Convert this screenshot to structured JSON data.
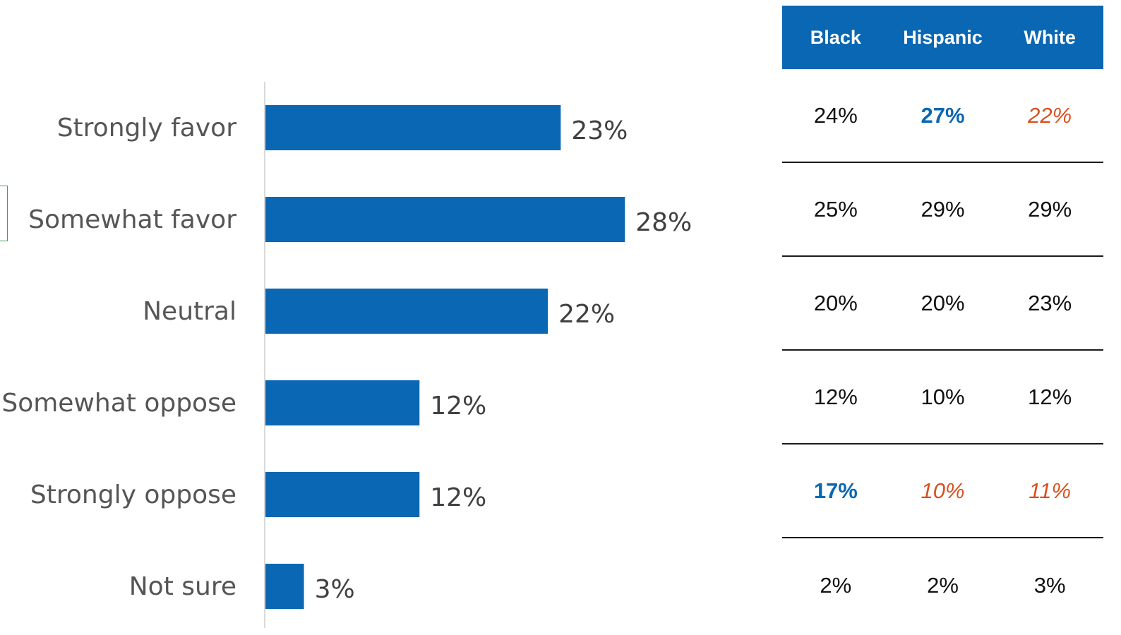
{
  "chart_data": {
    "type": "bar",
    "orientation": "horizontal",
    "categories": [
      "Strongly favor",
      "Somewhat favor",
      "Neutral",
      "Somewhat oppose",
      "Strongly oppose",
      "Not sure"
    ],
    "values": [
      23,
      28,
      22,
      12,
      12,
      3
    ],
    "value_labels": [
      "23%",
      "28%",
      "22%",
      "12%",
      "12%",
      "3%"
    ],
    "xlim": [
      0,
      32
    ],
    "bar_color": "#0a67b3",
    "grid": false,
    "legend": "none"
  },
  "table": {
    "columns": [
      "Black",
      "Hispanic",
      "White"
    ],
    "rows": [
      [
        {
          "text": "24%",
          "style": "normal"
        },
        {
          "text": "27%",
          "style": "hi-blue"
        },
        {
          "text": "22%",
          "style": "hi-orange"
        }
      ],
      [
        {
          "text": "25%",
          "style": "normal"
        },
        {
          "text": "29%",
          "style": "normal"
        },
        {
          "text": "29%",
          "style": "normal"
        }
      ],
      [
        {
          "text": "20%",
          "style": "normal"
        },
        {
          "text": "20%",
          "style": "normal"
        },
        {
          "text": "23%",
          "style": "normal"
        }
      ],
      [
        {
          "text": "12%",
          "style": "normal"
        },
        {
          "text": "10%",
          "style": "normal"
        },
        {
          "text": "12%",
          "style": "normal"
        }
      ],
      [
        {
          "text": "17%",
          "style": "hi-blue"
        },
        {
          "text": "10%",
          "style": "hi-orange"
        },
        {
          "text": "11%",
          "style": "hi-orange"
        }
      ],
      [
        {
          "text": "2%",
          "style": "normal"
        },
        {
          "text": "2%",
          "style": "normal"
        },
        {
          "text": "3%",
          "style": "normal"
        }
      ]
    ],
    "header_color": "#0a67b3",
    "highlight_blue": "#0a67b3",
    "highlight_orange": "#d9501e"
  }
}
